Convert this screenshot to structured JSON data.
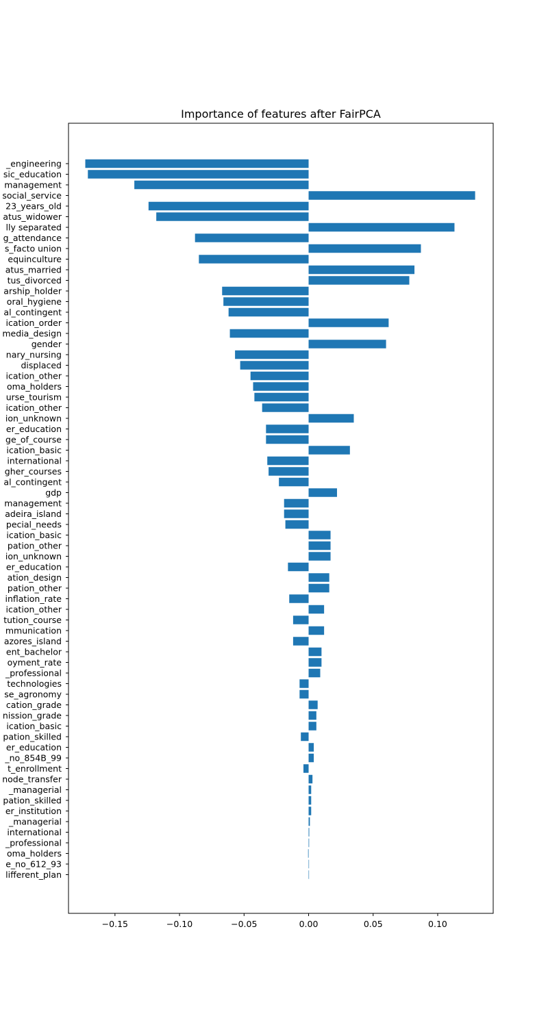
{
  "chart_data": {
    "type": "bar",
    "orientation": "horizontal",
    "title": "Importance of features after FairPCA",
    "xlabel": "",
    "ylabel": "",
    "xlim": [
      -0.186,
      0.143
    ],
    "xticks": [
      -0.15,
      -0.1,
      -0.05,
      0.0,
      0.05,
      0.1
    ],
    "xtick_labels": [
      "−0.15",
      "−0.10",
      "−0.05",
      "0.00",
      "0.05",
      "0.10"
    ],
    "grid": false,
    "color": "#1f77b4",
    "categories": [
      "_engineering",
      "sic_education",
      "management",
      "social_service",
      "23_years_old",
      "atus_widower",
      "lly separated",
      "g_attendance",
      "s_facto union",
      "equinculture",
      "atus_married",
      "tus_divorced",
      "arship_holder",
      "oral_hygiene",
      "al_contingent",
      "ication_order",
      "media_design",
      "gender",
      "nary_nursing",
      "displaced",
      "ication_other",
      "oma_holders",
      "urse_tourism",
      "ication_other",
      "ion_unknown",
      "er_education",
      "ge_of_course",
      "ication_basic",
      "international",
      "gher_courses",
      "al_contingent",
      "gdp",
      "management",
      "adeira_island",
      "pecial_needs",
      "ication_basic",
      "pation_other",
      "ion_unknown",
      "er_education",
      "ation_design",
      "pation_other",
      "inflation_rate",
      "ication_other",
      "tution_course",
      "mmunication",
      "azores_island",
      "ent_bachelor",
      "oyment_rate",
      "_professional",
      "technologies",
      "se_agronomy",
      "cation_grade",
      "nission_grade",
      "ication_basic",
      "pation_skilled",
      "er_education",
      "_no_854B_99",
      "t_enrollment",
      "node_transfer",
      "_managerial",
      "pation_skilled",
      "er_institution",
      "_managerial",
      "international",
      "_professional",
      "oma_holders",
      "e_no_612_93",
      "lifferent_plan"
    ],
    "values": [
      -0.173,
      -0.171,
      -0.135,
      0.129,
      -0.124,
      -0.118,
      0.113,
      -0.088,
      0.087,
      -0.085,
      0.082,
      0.078,
      -0.067,
      -0.066,
      -0.062,
      0.062,
      -0.061,
      0.06,
      -0.057,
      -0.053,
      -0.045,
      -0.043,
      -0.042,
      -0.036,
      0.035,
      -0.033,
      -0.033,
      0.032,
      -0.032,
      -0.031,
      -0.023,
      0.022,
      -0.019,
      -0.019,
      -0.018,
      0.017,
      0.017,
      0.017,
      -0.016,
      0.016,
      0.016,
      -0.015,
      0.012,
      -0.012,
      0.012,
      -0.012,
      0.01,
      0.01,
      0.009,
      -0.007,
      -0.007,
      0.007,
      0.006,
      0.006,
      -0.006,
      0.004,
      0.004,
      -0.004,
      0.003,
      0.002,
      0.002,
      0.002,
      0.001,
      0.0005,
      0.0004,
      -0.0004,
      0.0,
      0.0
    ]
  }
}
